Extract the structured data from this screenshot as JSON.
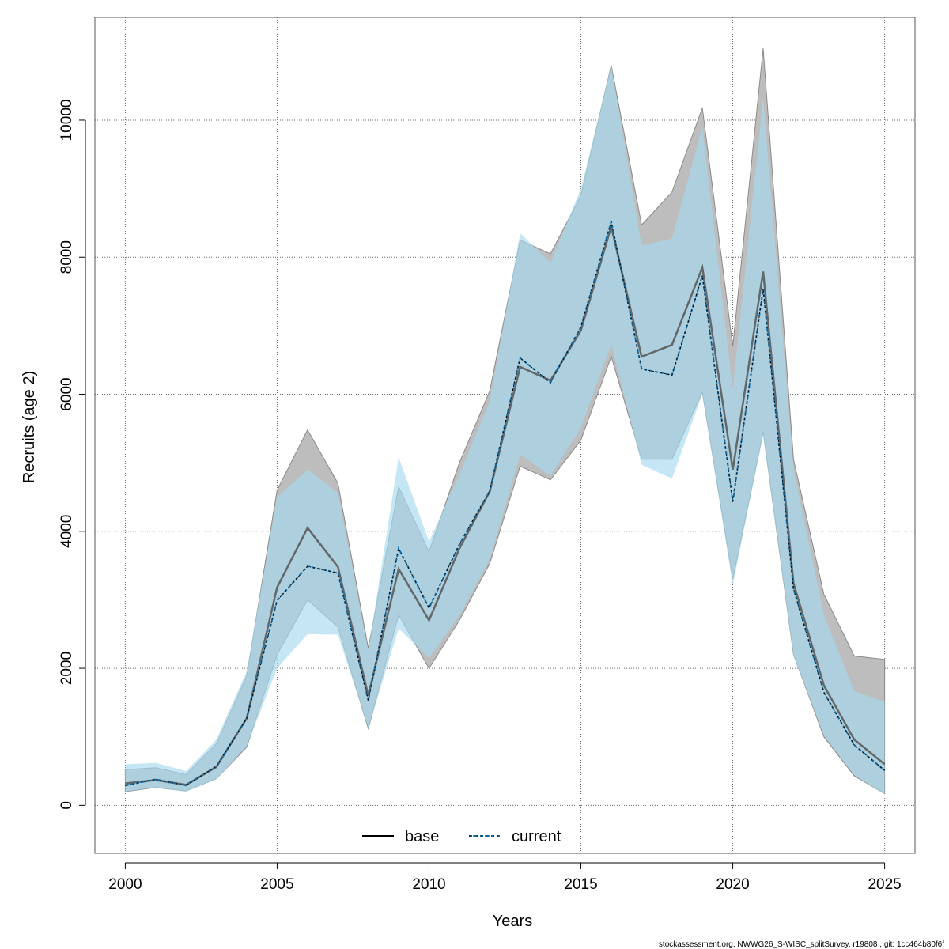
{
  "chart_data": {
    "type": "line",
    "xlabel": "Years",
    "ylabel": "Recruits (age 2)",
    "xlim": [
      1999,
      2026
    ],
    "ylim": [
      -700,
      11500
    ],
    "x_ticks": [
      2000,
      2005,
      2010,
      2015,
      2020,
      2025
    ],
    "y_ticks": [
      0,
      2000,
      4000,
      6000,
      8000,
      10000
    ],
    "grid": true,
    "legend_position": "bottom-center",
    "x": [
      2000,
      2001,
      2002,
      2003,
      2004,
      2005,
      2006,
      2007,
      2008,
      2009,
      2010,
      2011,
      2012,
      2013,
      2014,
      2015,
      2016,
      2017,
      2018,
      2019,
      2020,
      2021,
      2022,
      2023,
      2024,
      2025
    ],
    "series": [
      {
        "name": "base",
        "color": "#000000",
        "line_style": "solid",
        "band_color": "#bdbdbd",
        "values": [
          320,
          370,
          300,
          560,
          1270,
          3180,
          4050,
          3480,
          1600,
          3450,
          2700,
          3750,
          4580,
          6400,
          6200,
          6930,
          8450,
          6550,
          6720,
          7850,
          4900,
          7790,
          3240,
          1750,
          960,
          600
        ],
        "lower": [
          200,
          260,
          210,
          390,
          850,
          2200,
          3000,
          2600,
          1120,
          2780,
          2000,
          2700,
          3530,
          4950,
          4750,
          5330,
          6550,
          5050,
          5050,
          6030,
          3300,
          5450,
          2200,
          1000,
          430,
          170
        ],
        "upper": [
          520,
          550,
          450,
          900,
          1890,
          4600,
          5480,
          4700,
          2290,
          4650,
          3700,
          5000,
          6050,
          8250,
          8050,
          8900,
          10800,
          8470,
          8950,
          10180,
          6700,
          11050,
          5050,
          3080,
          2180,
          2130
        ]
      },
      {
        "name": "current",
        "color": "#0e6aa0",
        "line_style": "dashed",
        "band_color": "#a6d8f0",
        "values": [
          290,
          380,
          290,
          570,
          1270,
          2990,
          3490,
          3390,
          1530,
          3750,
          2880,
          3810,
          4590,
          6530,
          6170,
          6980,
          8520,
          6370,
          6280,
          7730,
          4430,
          7540,
          3160,
          1650,
          880,
          510
        ],
        "lower": [
          200,
          260,
          200,
          380,
          860,
          2000,
          2500,
          2490,
          1130,
          2580,
          2150,
          2770,
          3590,
          5120,
          4810,
          5510,
          6730,
          4970,
          4770,
          6000,
          3220,
          5400,
          2180,
          1020,
          440,
          160
        ],
        "upper": [
          600,
          620,
          500,
          960,
          1960,
          4500,
          4900,
          4560,
          2260,
          5080,
          3850,
          4830,
          5900,
          8350,
          7920,
          9000,
          10800,
          8170,
          8270,
          9900,
          6070,
          10320,
          4900,
          2780,
          1670,
          1510
        ]
      }
    ]
  },
  "footer": "stockassessment.org, NWWG26_S-WISC_splitSurvey, r19808 , git: 1cc464b80f6f"
}
